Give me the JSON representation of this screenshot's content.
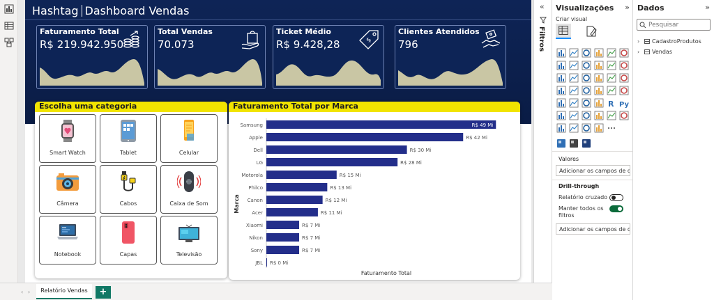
{
  "report": {
    "title_left": "Hashtag",
    "title_right": "Dashboard Vendas"
  },
  "kpis": [
    {
      "label": "Faturamento Total",
      "value": "R$ 219.942.950",
      "icon": "coins-icon"
    },
    {
      "label": "Total Vendas",
      "value": "70.073",
      "icon": "shopping-bag-icon"
    },
    {
      "label": "Ticket Médio",
      "value": "R$ 9.428,28",
      "icon": "price-tag-icon"
    },
    {
      "label": "Clientes Atendidos",
      "value": "796",
      "icon": "handshake-icon"
    }
  ],
  "category_panel": {
    "title": "Escolha uma categoria",
    "tiles": [
      {
        "label": "Smart Watch",
        "icon": "smartwatch-icon"
      },
      {
        "label": "Tablet",
        "icon": "tablet-icon"
      },
      {
        "label": "Celular",
        "icon": "phone-icon"
      },
      {
        "label": "Câmera",
        "icon": "camera-icon"
      },
      {
        "label": "Cabos",
        "icon": "cable-icon"
      },
      {
        "label": "Caixa de Som",
        "icon": "speaker-icon"
      },
      {
        "label": "Notebook",
        "icon": "laptop-icon"
      },
      {
        "label": "Capas",
        "icon": "phone-case-icon"
      },
      {
        "label": "Televisão",
        "icon": "tv-icon"
      }
    ]
  },
  "chart_data": {
    "type": "bar",
    "orientation": "horizontal",
    "title": "Faturamento Total por Marca",
    "xlabel": "Faturamento Total",
    "ylabel": "Marca",
    "categories": [
      "Samsung",
      "Apple",
      "Dell",
      "LG",
      "Motorola",
      "Philco",
      "Canon",
      "Acer",
      "Xiaomi",
      "Nikon",
      "Sony",
      "JBL"
    ],
    "values": [
      49,
      42,
      30,
      28,
      15,
      13,
      12,
      11,
      7,
      7,
      7,
      0
    ],
    "data_labels": [
      "R$ 49 Mi",
      "R$ 42 Mi",
      "R$ 30 Mi",
      "R$ 28 Mi",
      "R$ 15 Mi",
      "R$ 13 Mi",
      "R$ 12 Mi",
      "R$ 11 Mi",
      "R$ 7 Mi",
      "R$ 7 Mi",
      "R$ 7 Mi",
      "R$ 0 Mi"
    ],
    "unit": "R$ Mi",
    "xlim": [
      0,
      50
    ],
    "bar_color": "#232e8a",
    "grid": false
  },
  "colors": {
    "banner": "#0e2456",
    "highlight_yellow": "#f1e400",
    "bar": "#232e8a",
    "pbi_green": "#117865",
    "toggle_on": "#0c6b3b"
  },
  "filters": {
    "label": "Filtros"
  },
  "visualizations": {
    "title": "Visualizações",
    "subtitle": "Criar visual",
    "values_label": "Valores",
    "values_placeholder": "Adicionar os campos de da...",
    "drill_title": "Drill-through",
    "cross_report_label": "Relatório cruzado",
    "cross_report_state": "Off",
    "keep_filters_label_1": "Manter todos os",
    "keep_filters_label_2": "filtros",
    "keep_filters_state": "On",
    "drill_placeholder": "Adicionar os campos de dr..."
  },
  "data_pane": {
    "title": "Dados",
    "search_placeholder": "Pesquisar",
    "tables": [
      "CadastroProdutos",
      "Vendas"
    ]
  },
  "bottom_bar": {
    "page_tab": "Relatório Vendas",
    "add_page": "+"
  }
}
